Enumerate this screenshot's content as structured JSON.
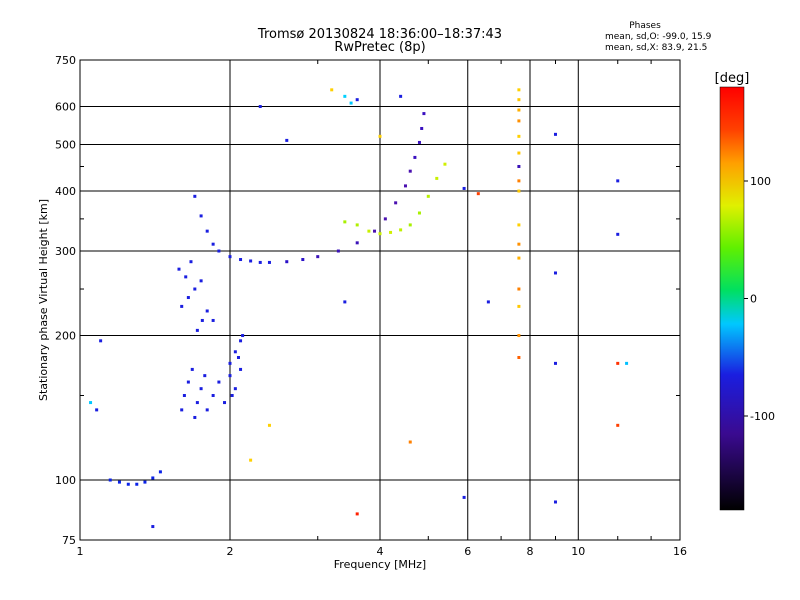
{
  "chart_data": {
    "type": "scatter",
    "title": "Tromsø 20130824  18:36:00–18:37:43",
    "subtitle": "RwPretec (8p)",
    "xlabel": "Frequency [MHz]",
    "ylabel": "Stationary phase Virtual Height [km]",
    "xscale": "log",
    "yscale": "log",
    "xlim": [
      1,
      16
    ],
    "ylim": [
      75,
      750
    ],
    "xticks": [
      1,
      2,
      4,
      6,
      8,
      10,
      16
    ],
    "xtick_labels": [
      "1",
      "2",
      "4",
      "6",
      "8",
      "10",
      "16"
    ],
    "yticks": [
      75,
      100,
      200,
      300,
      400,
      500,
      600,
      750
    ],
    "ytick_labels": [
      "75",
      "100",
      "200",
      "300",
      "400",
      "500",
      "600",
      "750"
    ],
    "grid": true,
    "stats": {
      "heading": "Phases",
      "line1": "mean, sd,O: -99.0, 15.9",
      "line2": "mean, sd,X:  83.9, 21.5"
    },
    "colorbar": {
      "label": "[deg]",
      "min": -180,
      "max": 180,
      "ticks": [
        100,
        0,
        -100
      ],
      "tick_labels": [
        "100",
        "0",
        "-100"
      ]
    },
    "series": [
      {
        "name": "O-mode trace (blue/purple)",
        "phase_deg": -100,
        "x": [
          1.15,
          1.2,
          1.25,
          1.3,
          1.35,
          1.4,
          1.45,
          1.7,
          1.75,
          1.8,
          1.85,
          1.9,
          2.0,
          2.1,
          2.2,
          2.3,
          2.4,
          2.6,
          2.8,
          3.0,
          3.3,
          3.6,
          3.9,
          4.1,
          4.3,
          4.5,
          4.6,
          4.7,
          4.8,
          4.85,
          4.9
        ],
        "y": [
          100,
          99,
          98,
          98,
          99,
          101,
          104,
          390,
          355,
          330,
          310,
          300,
          292,
          288,
          286,
          284,
          284,
          285,
          288,
          292,
          300,
          312,
          330,
          350,
          378,
          410,
          440,
          470,
          505,
          540,
          580
        ],
        "colors": [
          "#0a22e8",
          "#0a22e8",
          "#0a22e8",
          "#0a22e8",
          "#0a22e8",
          "#0a22e8",
          "#0a22e8",
          "#1a1ee0",
          "#1a1ee0",
          "#1a1ee0",
          "#1a1ee0",
          "#1a1ee0",
          "#1a1ee0",
          "#1a1ee0",
          "#1a1ee0",
          "#1a1ee0",
          "#1a1ee0",
          "#2a10c8",
          "#2a10c8",
          "#3a12b8",
          "#3a12b8",
          "#3a12b8",
          "#4a10b0",
          "#4a10b0",
          "#4a10b0",
          "#4a10b0",
          "#4a10b0",
          "#3a10c0",
          "#3a10c0",
          "#3a10c0",
          "#3a10c0"
        ]
      },
      {
        "name": "X-mode trace (yellow-green)",
        "phase_deg": 84,
        "x": [
          3.4,
          3.6,
          3.8,
          4.0,
          4.2,
          4.4,
          4.6,
          4.8,
          5.0,
          5.2,
          5.4
        ],
        "y": [
          345,
          340,
          330,
          326,
          328,
          332,
          340,
          360,
          390,
          425,
          455
        ],
        "colors": [
          "#a8f000",
          "#b0f000",
          "#c8f000",
          "#c8f000",
          "#d0f000",
          "#c0f000",
          "#a8f000",
          "#a8f000",
          "#b8f000",
          "#c8f000",
          "#d0f000"
        ]
      },
      {
        "name": "scattered echoes 1.5–2.2 MHz (blue)",
        "phase_deg": -110,
        "x": [
          1.6,
          1.62,
          1.65,
          1.68,
          1.7,
          1.72,
          1.75,
          1.78,
          1.8,
          1.85,
          1.9,
          1.95,
          2.0,
          2.05,
          2.1,
          1.6,
          1.65,
          1.7,
          1.75,
          1.8,
          1.85,
          2.0,
          2.05,
          2.1,
          1.58,
          1.63,
          1.67,
          1.72,
          1.76,
          2.02,
          2.08,
          2.12
        ],
        "y": [
          140,
          150,
          160,
          170,
          135,
          145,
          155,
          165,
          140,
          150,
          160,
          145,
          175,
          185,
          195,
          230,
          240,
          250,
          260,
          225,
          215,
          165,
          155,
          170,
          275,
          265,
          285,
          205,
          215,
          150,
          180,
          200
        ],
        "colors": [
          "#1a1ee0",
          "#1a1ee0",
          "#1a1ee0",
          "#1a1ee0",
          "#1a1ee0",
          "#1a1ee0",
          "#1a1ee0",
          "#1a1ee0",
          "#1a1ee0",
          "#1a1ee0",
          "#1a1ee0",
          "#1a1ee0",
          "#1a1ee0",
          "#1a1ee0",
          "#1a1ee0",
          "#1a1ee0",
          "#1a1ee0",
          "#1a1ee0",
          "#1a1ee0",
          "#1a1ee0",
          "#1a1ee0",
          "#1a1ee0",
          "#1a1ee0",
          "#1a1ee0",
          "#1a1ee0",
          "#1a1ee0",
          "#1a1ee0",
          "#1a1ee0",
          "#1a1ee0",
          "#1a1ee0",
          "#1a1ee0",
          "#1a1ee0"
        ]
      },
      {
        "name": "vertical column at 7.6 MHz",
        "phase_deg": 100,
        "x": [
          7.6,
          7.6,
          7.6,
          7.6,
          7.6,
          7.6,
          7.6,
          7.6,
          7.6,
          7.6,
          7.6,
          7.6,
          7.6,
          7.6,
          7.6,
          7.6
        ],
        "y": [
          650,
          620,
          590,
          560,
          520,
          480,
          450,
          420,
          400,
          340,
          310,
          290,
          250,
          230,
          200,
          180
        ],
        "colors": [
          "#ffd000",
          "#ffc800",
          "#ffb000",
          "#ff9000",
          "#ffd000",
          "#ffc800",
          "#3a12b8",
          "#ff8000",
          "#ffc800",
          "#ffd000",
          "#ff9000",
          "#ffb000",
          "#ff8000",
          "#ffc800",
          "#ff9000",
          "#ff6000"
        ]
      },
      {
        "name": "isolated echoes",
        "phase_deg": 0,
        "x": [
          1.05,
          1.08,
          1.1,
          1.4,
          2.3,
          2.6,
          3.2,
          3.4,
          3.5,
          3.6,
          4.0,
          4.4,
          5.9,
          6.3,
          6.6,
          9.0,
          9.0,
          9.0,
          9.0,
          12.0,
          12.0,
          12.0,
          12.0,
          12.5,
          3.4,
          3.6,
          4.6,
          5.9,
          2.2,
          2.4
        ],
        "y": [
          145,
          140,
          195,
          80,
          600,
          510,
          650,
          630,
          610,
          620,
          520,
          630,
          405,
          395,
          235,
          525,
          270,
          175,
          90,
          420,
          325,
          175,
          130,
          175,
          235,
          85,
          120,
          92,
          110,
          130
        ],
        "colors": [
          "#00c8ff",
          "#1a1ee0",
          "#1a1ee0",
          "#1a1ee0",
          "#1a1ee0",
          "#1a1ee0",
          "#ffd000",
          "#00d0ff",
          "#00c8ff",
          "#1a1ee0",
          "#ffd000",
          "#1a1ee0",
          "#1a1ee0",
          "#ff4000",
          "#1a1ee0",
          "#1a1ee0",
          "#1a1ee0",
          "#1a1ee0",
          "#1a1ee0",
          "#1a1ee0",
          "#1a1ee0",
          "#ff3000",
          "#ff4000",
          "#00c0ff",
          "#1a1ee0",
          "#ff2000",
          "#ff8000",
          "#1a1ee0",
          "#ffd000",
          "#ffd000"
        ]
      }
    ]
  }
}
